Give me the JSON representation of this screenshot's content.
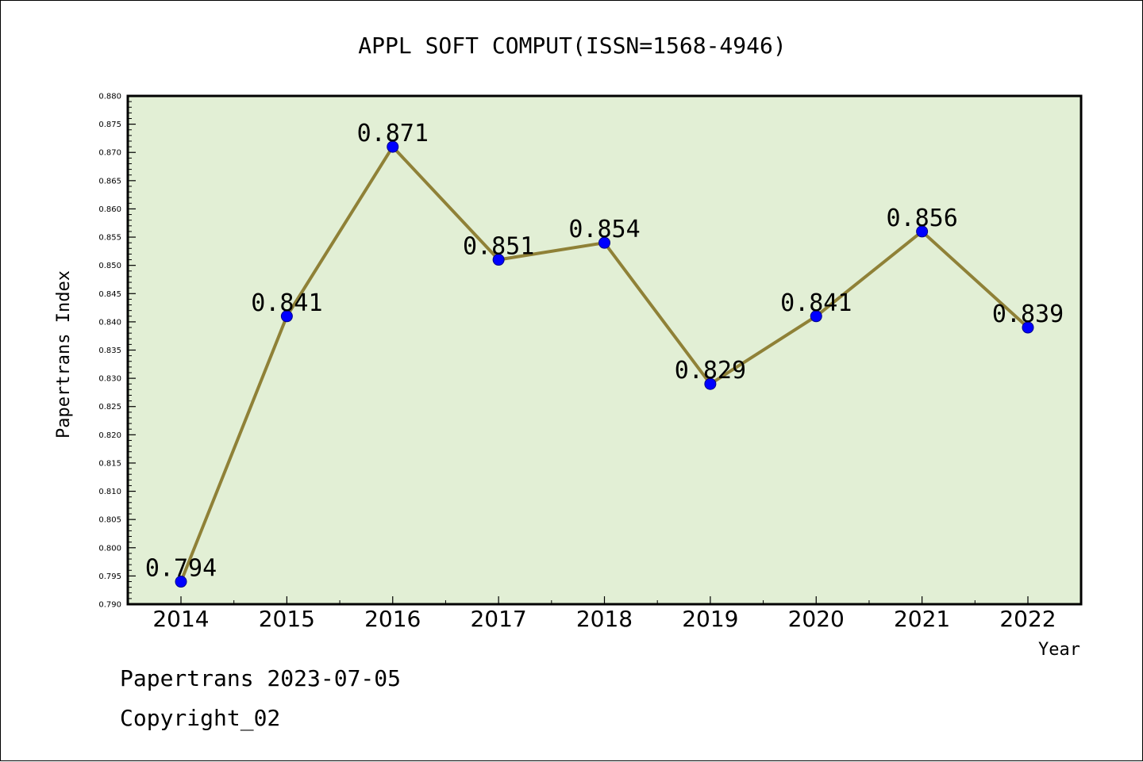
{
  "chart_data": {
    "type": "line",
    "title": "APPL SOFT COMPUT(ISSN=1568-4946)",
    "xlabel": "Year",
    "ylabel": "Papertrans Index",
    "categories": [
      "2014",
      "2015",
      "2016",
      "2017",
      "2018",
      "2019",
      "2020",
      "2021",
      "2022"
    ],
    "values": [
      0.794,
      0.841,
      0.871,
      0.851,
      0.854,
      0.829,
      0.841,
      0.856,
      0.839
    ],
    "data_labels": [
      "0.794",
      "0.841",
      "0.871",
      "0.851",
      "0.854",
      "0.829",
      "0.841",
      "0.856",
      "0.839"
    ],
    "ylim": [
      0.79,
      0.88
    ],
    "yticks": [
      "0.790",
      "0.795",
      "0.800",
      "0.805",
      "0.810",
      "0.815",
      "0.820",
      "0.825",
      "0.830",
      "0.835",
      "0.840",
      "0.845",
      "0.850",
      "0.855",
      "0.860",
      "0.865",
      "0.870",
      "0.875",
      "0.880"
    ],
    "grid": false,
    "colors": {
      "plot_background": "#e2efd5",
      "line": "#8f8137",
      "marker": "#0000ff"
    }
  },
  "footer": {
    "line1": "Papertrans 2023-07-05",
    "line2": "Copyright_02"
  }
}
